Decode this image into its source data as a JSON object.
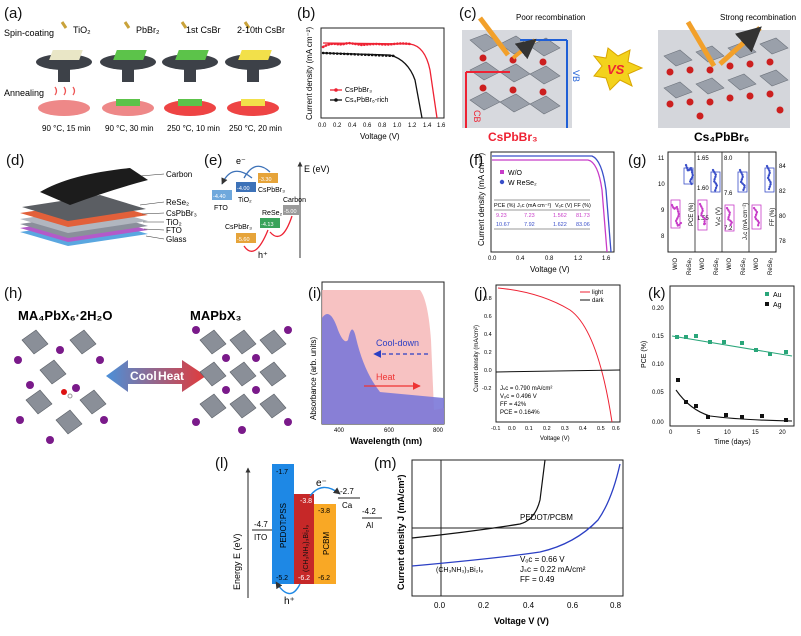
{
  "panels": {
    "a": {
      "label": "(a)",
      "spin_coating": "Spin-coating",
      "steps": [
        "TiO₂",
        "PbBr₂",
        "1st CsBr",
        "2-10th CsBr"
      ],
      "annealing": "Annealing",
      "temps": [
        "90 °C, 15 min",
        "90 °C, 30 min",
        "250 °C, 10 min",
        "250 °C, 20 min"
      ]
    },
    "b": {
      "label": "(b)",
      "ylabel": "Current density (mA cm⁻²)",
      "xlabel": "Voltage (V)",
      "xticks": [
        "0.0",
        "0.2",
        "0.4",
        "0.6",
        "0.8",
        "1.0",
        "1.2",
        "1.4",
        "1.6"
      ],
      "legend": [
        "CsPbBr₃",
        "Cs₄PbBr₆-rich"
      ]
    },
    "c": {
      "label": "(c)",
      "poor": "Poor recombination",
      "strong": "Strong recombination",
      "cb": "CB",
      "vb": "VB",
      "vs": "VS",
      "left_name": "CsPbBr₃",
      "right_name": "Cs₄PbBr₆"
    },
    "d": {
      "label": "(d)",
      "layers": [
        "Carbon",
        "ReSe₂",
        "CsPbBr₃",
        "TiO₂",
        "FTO",
        "Glass"
      ]
    },
    "e": {
      "label": "(e)",
      "axis": "E (eV)",
      "fto": "FTO",
      "tio2": "TiO₂",
      "cspbbr3": "CsPbBr₃",
      "rese2": "ReSe₂",
      "carbon": "Carbon",
      "values": [
        "-4.40",
        "-4.00",
        "-3.30",
        "-5.60",
        "-4.13",
        "-5.00"
      ],
      "electron": "e⁻",
      "hole": "h⁺"
    },
    "f": {
      "label": "(f)",
      "ylabel": "Current density (mA cm⁻²)",
      "xlabel": "Voltage (V)",
      "xticks": [
        "0.0",
        "0.4",
        "0.8",
        "1.2",
        "1.6"
      ],
      "legend": [
        "W/O",
        "W ReSe₂"
      ],
      "table_head": [
        "PCE (%)",
        "Jₛc (mA cm⁻²)",
        "Vₒc (V)",
        "FF (%)"
      ],
      "row1": [
        "9.23",
        "7.23",
        "1.562",
        "81.73"
      ],
      "row2": [
        "10.67",
        "7.92",
        "1.622",
        "83.06"
      ]
    },
    "g": {
      "label": "(g)",
      "yticks_left": [
        "11",
        "10",
        "9",
        "8"
      ],
      "yticks_mid": [
        "1.65",
        "1.60",
        "1.55"
      ],
      "yticks_jsc": [
        "8.0",
        "7.6",
        "7.2"
      ],
      "yticks_ff": [
        "84",
        "82",
        "80",
        "78"
      ],
      "ylabels": [
        "PCE (%)",
        "Vₒc (V)",
        "Jₛc (mA cm⁻²)",
        "FF (%)"
      ],
      "categories": [
        "W/O",
        "ReSe₂"
      ]
    },
    "h": {
      "label": "(h)",
      "left_name": "MA₄PbX₆·2H₂O",
      "right_name": "MAPbX₃",
      "cool": "Cool",
      "heat": "Heat"
    },
    "i": {
      "label": "(i)",
      "ylabel": "Absorbance (arb. units)",
      "xlabel": "Wavelength (nm)",
      "xticks": [
        "400",
        "600",
        "800"
      ],
      "cool_down": "Cool-down",
      "heat": "Heat"
    },
    "j": {
      "label": "(j)",
      "ylabel": "Current density (mA/cm²)",
      "xlabel": "Voltage (V)",
      "xticks": [
        "-0.1",
        "0.0",
        "0.1",
        "0.2",
        "0.3",
        "0.4",
        "0.5",
        "0.6"
      ],
      "yticks": [
        "0.8",
        "0.6",
        "0.4",
        "0.2",
        "0.0",
        "-0.2"
      ],
      "legend": [
        "light",
        "dark"
      ],
      "stats": [
        "Jₛc = 0.790 mA/cm²",
        "Vₒc = 0.496 V",
        "FF = 42%",
        "PCE = 0.164%"
      ]
    },
    "k": {
      "label": "(k)",
      "ylabel": "PCE (%)",
      "xlabel": "Time (days)",
      "xticks": [
        "0",
        "5",
        "10",
        "15",
        "20"
      ],
      "yticks": [
        "0.20",
        "0.15",
        "0.10",
        "0.05",
        "0.00"
      ],
      "legend": [
        "Au",
        "Ag"
      ]
    },
    "l": {
      "label": "(l)",
      "axis": "Energy E (eV)",
      "ito": "ITO",
      "pedot": "PEDOT:PSS",
      "perov": "(CH₃NH₃)₃Bi₂I₉",
      "pcbm": "PCBM",
      "ca": "Ca",
      "al": "Al",
      "values": [
        "-4.7",
        "-1.7",
        "-5.2",
        "-3.8",
        "-6.2",
        "-2.7",
        "-4.2",
        "-3.8",
        "-6.2"
      ],
      "electron": "e⁻",
      "hole": "h⁺"
    },
    "m": {
      "label": "(m)",
      "ylabel": "Current density J (mA/cm²)",
      "xlabel": "Voltage V (V)",
      "xticks": [
        "0.0",
        "0.2",
        "0.4",
        "0.6",
        "0.8"
      ],
      "curve_label": "PEDOT/PCBM",
      "material": "(CH₃NH₃)₃Bi₂I₉",
      "stats": [
        "Vₒc = 0.66 V",
        "Jₛc = 0.22 mA/cm²",
        "FF = 0.49"
      ]
    }
  }
}
